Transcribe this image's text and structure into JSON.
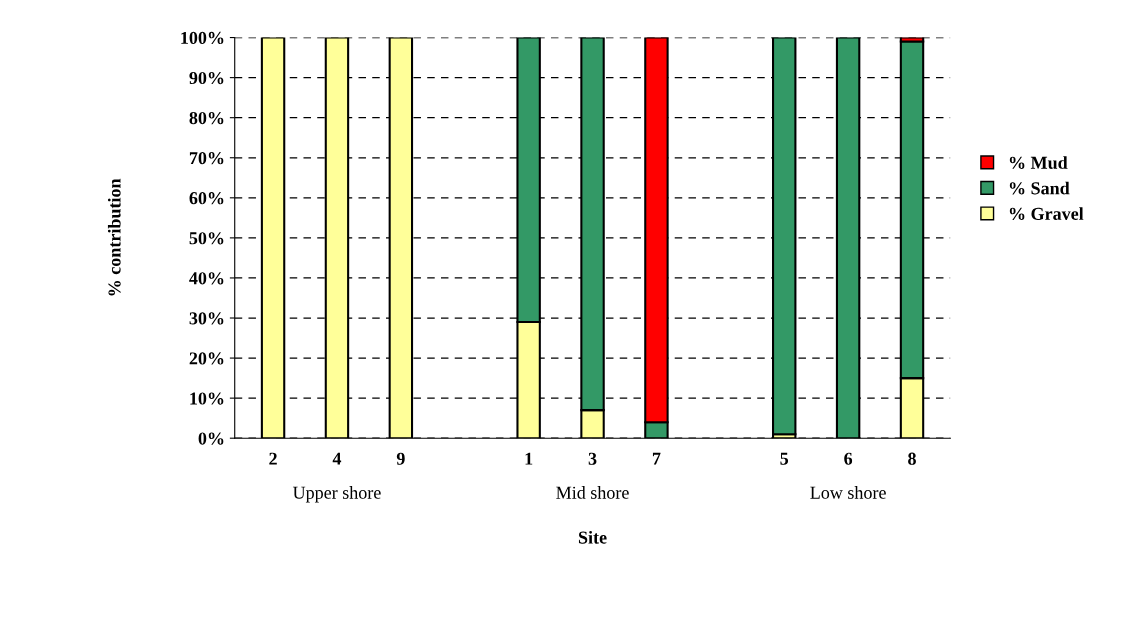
{
  "chart_data": {
    "type": "bar",
    "stacked": true,
    "xlabel": "Site",
    "ylabel": "% contribution",
    "categories": [
      "2",
      "4",
      "9",
      null,
      "1",
      "3",
      "7",
      null,
      "5",
      "6",
      "8"
    ],
    "series": [
      {
        "name": "% Gravel",
        "color": "#ffff99",
        "values": [
          100,
          100,
          100,
          null,
          29,
          7,
          0,
          null,
          1,
          0,
          15
        ]
      },
      {
        "name": "% Sand",
        "color": "#339966",
        "values": [
          0,
          0,
          0,
          null,
          71,
          93,
          4,
          null,
          99,
          100,
          84
        ]
      },
      {
        "name": "% Mud",
        "color": "#ff0000",
        "values": [
          0,
          0,
          0,
          null,
          0,
          0,
          96,
          null,
          0,
          0,
          1
        ]
      }
    ],
    "annotations": [
      "Upper shore",
      "Mid shore",
      "Low shore"
    ],
    "ylim": [
      0,
      100
    ],
    "yticks": [
      {
        "value": 0,
        "label": "0%"
      },
      {
        "value": 10,
        "label": "10%"
      },
      {
        "value": 20,
        "label": "20%"
      },
      {
        "value": 30,
        "label": "30%"
      },
      {
        "value": 40,
        "label": "40%"
      },
      {
        "value": 50,
        "label": "50%"
      },
      {
        "value": 60,
        "label": "60%"
      },
      {
        "value": 70,
        "label": "70%"
      },
      {
        "value": 80,
        "label": "80%"
      },
      {
        "value": 90,
        "label": "90%"
      },
      {
        "value": 100,
        "label": "100%"
      }
    ],
    "grid": "y",
    "legend": "right"
  }
}
